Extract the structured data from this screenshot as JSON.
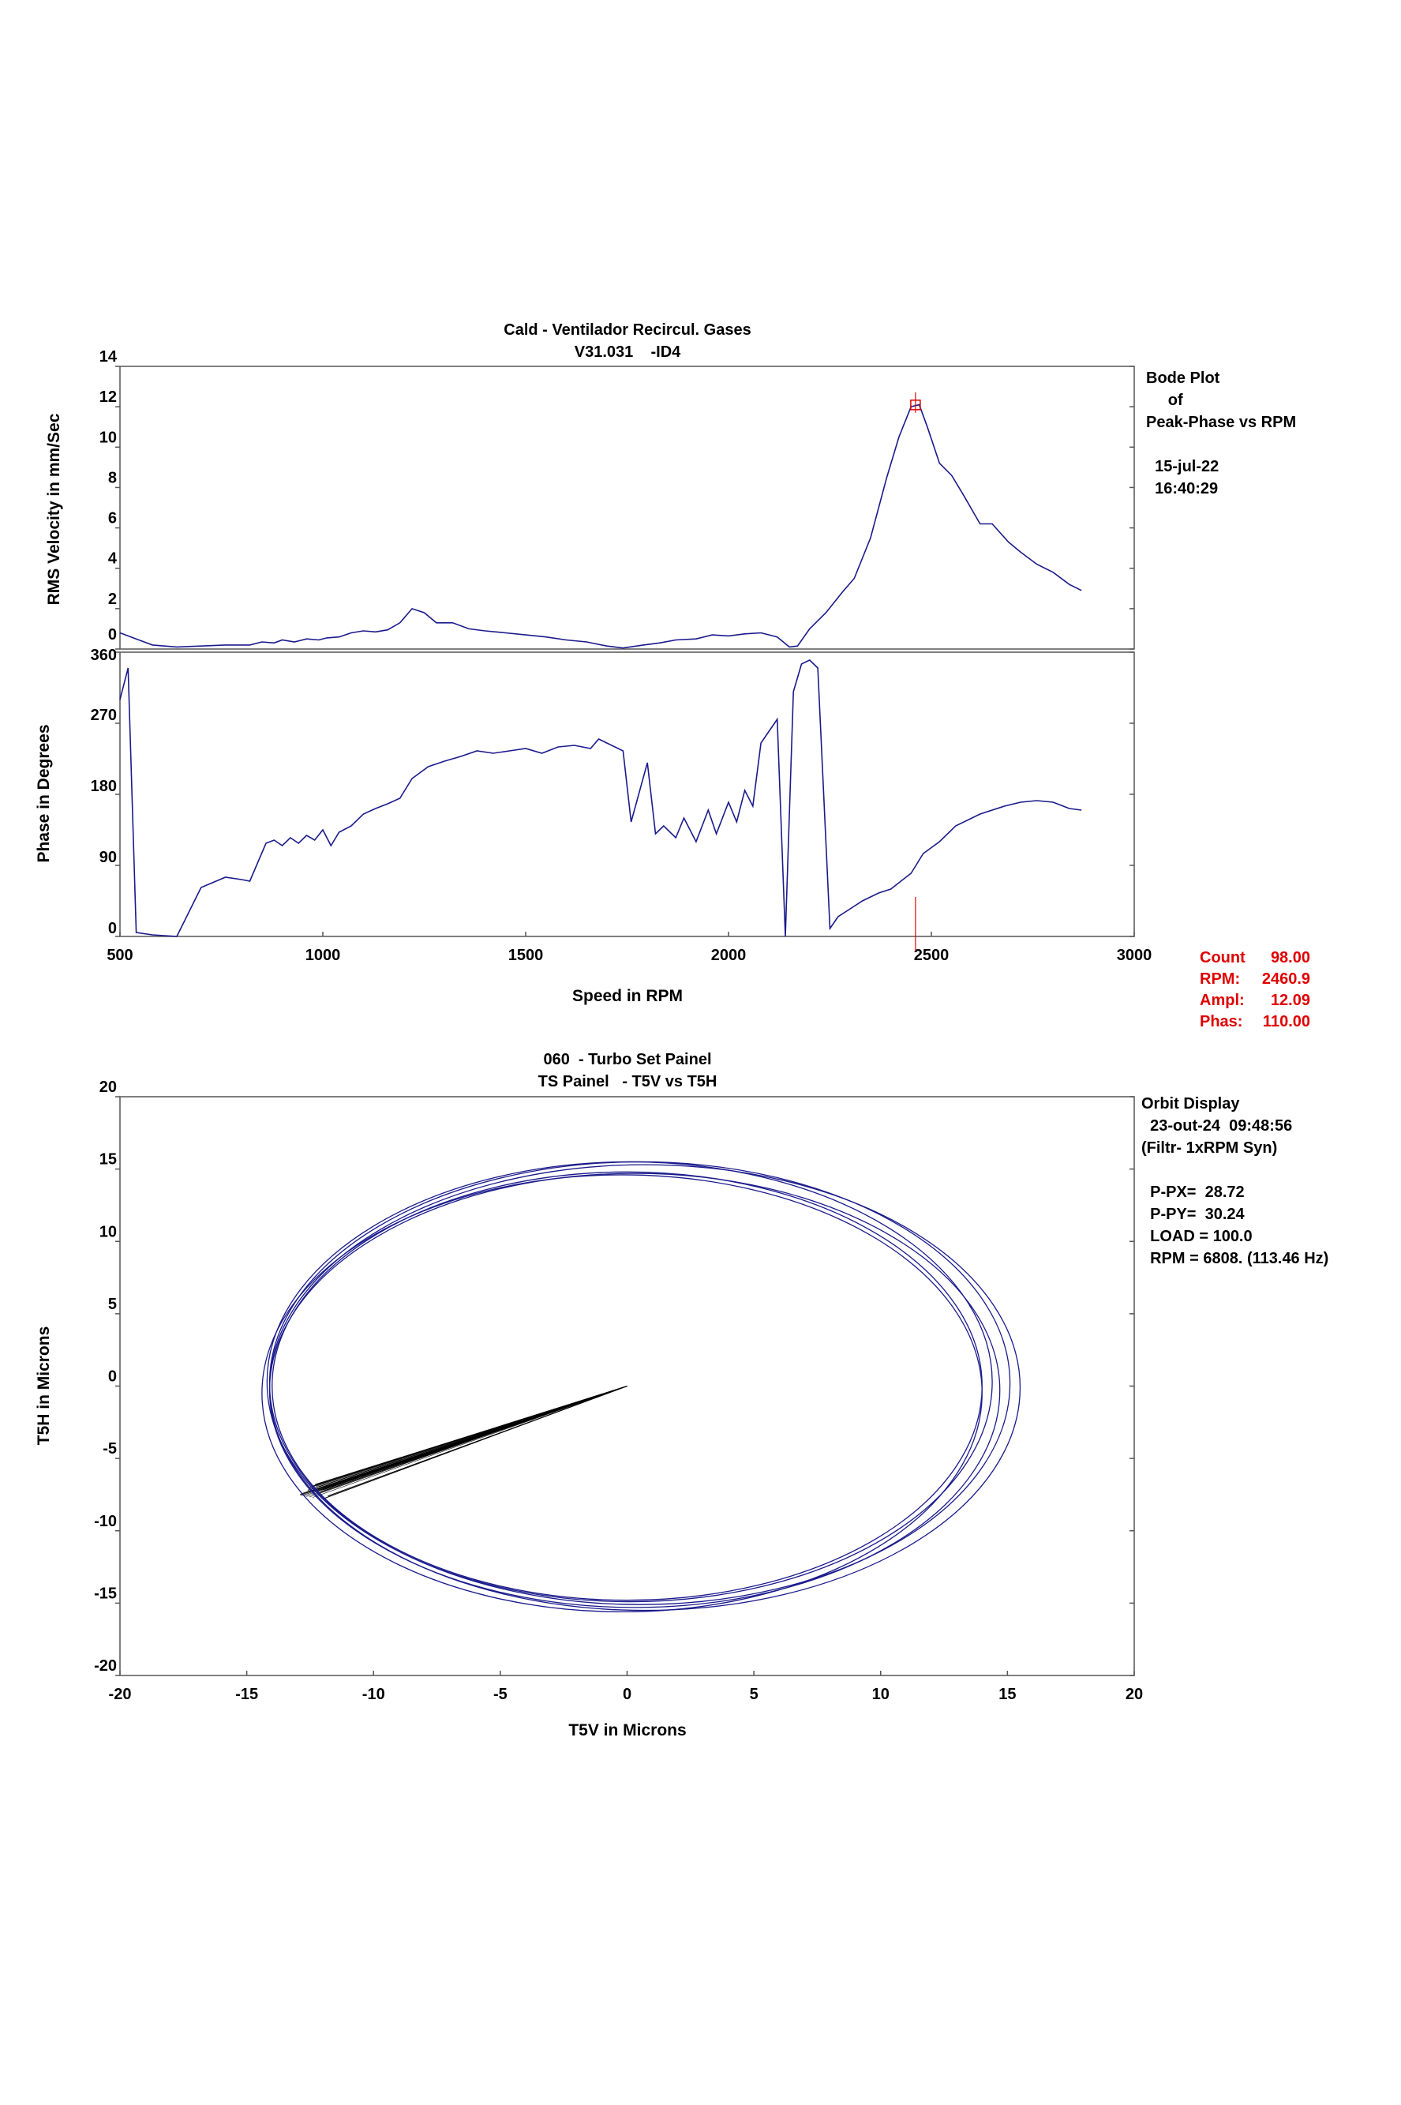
{
  "colors": {
    "trace": "#1a1a8c",
    "cursor": "#e00000",
    "vector": "#000000",
    "frame": "#555555"
  },
  "chart_data": [
    {
      "type": "line",
      "title": "Cald - Ventilador Recircul. Gases",
      "subtitle": "V31.031    -ID4",
      "xlabel": "Speed in RPM",
      "xlim": [
        500,
        3000
      ],
      "xticks": [
        500,
        1000,
        1500,
        2000,
        2500,
        3000
      ],
      "grid": false,
      "amplitude": {
        "ylabel": "RMS Velocity in mm/Sec",
        "ylim": [
          0,
          14
        ],
        "yticks": [
          0,
          2,
          4,
          6,
          8,
          10,
          12,
          14
        ],
        "x": [
          500,
          540,
          580,
          640,
          700,
          760,
          820,
          850,
          880,
          900,
          930,
          960,
          990,
          1010,
          1040,
          1070,
          1100,
          1130,
          1160,
          1190,
          1220,
          1250,
          1280,
          1320,
          1360,
          1400,
          1450,
          1500,
          1550,
          1600,
          1650,
          1700,
          1740,
          1790,
          1830,
          1870,
          1920,
          1960,
          2000,
          2040,
          2080,
          2120,
          2150,
          2170,
          2200,
          2240,
          2280,
          2310,
          2350,
          2390,
          2420,
          2450,
          2470,
          2490,
          2520,
          2550,
          2580,
          2620,
          2650,
          2690,
          2720,
          2760,
          2800,
          2840,
          2870
        ],
        "y": [
          0.8,
          0.5,
          0.2,
          0.1,
          0.15,
          0.2,
          0.2,
          0.35,
          0.3,
          0.45,
          0.35,
          0.5,
          0.45,
          0.55,
          0.6,
          0.8,
          0.9,
          0.85,
          0.95,
          1.3,
          2.0,
          1.8,
          1.3,
          1.3,
          1.0,
          0.9,
          0.8,
          0.7,
          0.6,
          0.45,
          0.35,
          0.15,
          0.05,
          0.2,
          0.3,
          0.45,
          0.5,
          0.7,
          0.65,
          0.75,
          0.8,
          0.6,
          0.1,
          0.15,
          1.0,
          1.8,
          2.8,
          3.5,
          5.5,
          8.5,
          10.5,
          12.0,
          12.1,
          11.0,
          9.2,
          8.6,
          7.6,
          6.2,
          6.2,
          5.3,
          4.8,
          4.2,
          3.8,
          3.2,
          2.9
        ]
      },
      "phase": {
        "ylabel": "Phase in Degrees",
        "ylim": [
          0,
          360
        ],
        "yticks": [
          0,
          90,
          180,
          270,
          360
        ],
        "x": [
          500,
          520,
          540,
          580,
          640,
          700,
          760,
          800,
          820,
          860,
          880,
          900,
          920,
          940,
          960,
          980,
          1000,
          1020,
          1040,
          1070,
          1100,
          1130,
          1160,
          1190,
          1220,
          1260,
          1300,
          1340,
          1380,
          1420,
          1460,
          1500,
          1540,
          1580,
          1620,
          1660,
          1680,
          1700,
          1740,
          1760,
          1800,
          1820,
          1840,
          1870,
          1890,
          1920,
          1950,
          1970,
          2000,
          2020,
          2040,
          2060,
          2080,
          2100,
          2120,
          2140,
          2160,
          2180,
          2200,
          2220,
          2250,
          2270,
          2300,
          2330,
          2370,
          2400,
          2450,
          2480,
          2520,
          2560,
          2620,
          2680,
          2720,
          2760,
          2800,
          2840,
          2870
        ],
        "y": [
          300,
          340,
          5,
          2,
          0,
          62,
          75,
          72,
          70,
          118,
          122,
          115,
          125,
          118,
          128,
          122,
          135,
          115,
          132,
          140,
          155,
          162,
          168,
          175,
          200,
          215,
          222,
          228,
          235,
          232,
          235,
          238,
          232,
          240,
          242,
          238,
          250,
          245,
          235,
          145,
          220,
          130,
          140,
          125,
          150,
          120,
          160,
          130,
          170,
          145,
          185,
          165,
          245,
          260,
          275,
          0,
          310,
          345,
          350,
          340,
          10,
          25,
          35,
          45,
          55,
          60,
          80,
          105,
          120,
          140,
          155,
          165,
          170,
          172,
          170,
          162,
          160
        ]
      },
      "cursor_marker": {
        "x": 2460.9,
        "y": 12.09
      },
      "info_lines": [
        "Bode Plot",
        "     of",
        "Peak-Phase vs RPM",
        "",
        "  15-jul-22",
        "  16:40:29"
      ],
      "readout": [
        {
          "label": "Count",
          "value": "98.00"
        },
        {
          "label": "RPM:",
          "value": "2460.9"
        },
        {
          "label": "Ampl:",
          "value": "12.09"
        },
        {
          "label": "Phas:",
          "value": "110.00"
        }
      ]
    },
    {
      "type": "scatter",
      "title": "060  - Turbo Set Painel",
      "subtitle": "TS Painel   - T5V vs T5H",
      "xlabel": "T5V in Microns",
      "ylabel": "T5H in Microns",
      "xlim": [
        -20,
        20
      ],
      "ylim": [
        -20,
        20
      ],
      "xticks": [
        -20,
        -15,
        -10,
        -5,
        0,
        5,
        10,
        15,
        20
      ],
      "yticks": [
        -20,
        -15,
        -10,
        -5,
        0,
        5,
        10,
        15,
        20
      ],
      "grid": false,
      "orbit": {
        "center": [
          0,
          0
        ],
        "semi_x": 14.36,
        "semi_y": 15.12,
        "rev_variations": [
          {
            "cx": 0.0,
            "cy": 0.0,
            "rx": 14.0,
            "ry": 14.8
          },
          {
            "cx": 0.3,
            "cy": -0.3,
            "rx": 14.4,
            "ry": 15.0
          },
          {
            "cx": 0.5,
            "cy": 0.2,
            "rx": 14.6,
            "ry": 15.3
          },
          {
            "cx": -0.2,
            "cy": -0.5,
            "rx": 14.2,
            "ry": 15.1
          },
          {
            "cx": 0.7,
            "cy": -0.1,
            "rx": 14.8,
            "ry": 15.4
          },
          {
            "cx": 0.1,
            "cy": 0.3,
            "rx": 14.3,
            "ry": 15.2
          }
        ]
      },
      "vector_tips": [
        [
          -12.5,
          -7.0
        ],
        [
          -12.2,
          -7.4
        ],
        [
          -12.0,
          -7.8
        ],
        [
          -12.3,
          -6.8
        ],
        [
          -11.8,
          -7.6
        ],
        [
          -12.6,
          -7.2
        ]
      ],
      "info_lines": [
        "Orbit Display",
        "  23-out-24  09:48:56",
        "(Filtr- 1xRPM Syn)",
        "",
        "  P-PX=  28.72",
        "  P-PY=  30.24",
        "  LOAD = 100.0",
        "  RPM = 6808. (113.46 Hz)"
      ]
    }
  ]
}
